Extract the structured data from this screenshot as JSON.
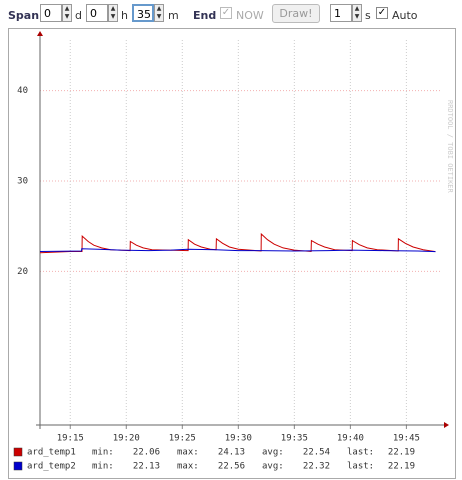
{
  "toolbar": {
    "span_label": "Span",
    "days": 0,
    "days_unit": "d",
    "hours": 0,
    "hours_unit": "h",
    "minutes": 35,
    "minutes_unit": "m",
    "end_label": "End",
    "now": "NOW",
    "draw": "Draw!",
    "interval": 1,
    "interval_unit": "s",
    "auto": "Auto"
  },
  "watermark": "RRDTOOL / TOBI OETIKER",
  "chart_data": {
    "type": "line",
    "xlim": [
      1152.3,
      1188
    ],
    "xticks": [
      {
        "value": 1155,
        "label": "19:15"
      },
      {
        "value": 1160,
        "label": "19:20"
      },
      {
        "value": 1165,
        "label": "19:25"
      },
      {
        "value": 1170,
        "label": "19:30"
      },
      {
        "value": 1175,
        "label": "19:35"
      },
      {
        "value": 1180,
        "label": "19:40"
      },
      {
        "value": 1185,
        "label": "19:45"
      }
    ],
    "ylim": [
      3,
      45.6
    ],
    "yticks": [
      40,
      30,
      20
    ],
    "grid": true,
    "series": [
      {
        "name": "ard_temp1",
        "color": "#cc0000",
        "x": [
          1152.3,
          1155.0,
          1156.05,
          1156.07,
          1156.6,
          1157.1,
          1157.8,
          1158.6,
          1160.34,
          1160.36,
          1160.9,
          1161.5,
          1162.3,
          1165.52,
          1165.54,
          1166.1,
          1166.7,
          1167.5,
          1168.02,
          1168.04,
          1168.6,
          1169.2,
          1170.0,
          1172.03,
          1172.05,
          1172.6,
          1173.2,
          1174.0,
          1175.0,
          1176.5,
          1176.52,
          1177.1,
          1177.7,
          1178.6,
          1180.16,
          1180.18,
          1180.8,
          1181.5,
          1182.4,
          1184.27,
          1184.29,
          1184.9,
          1185.6,
          1186.5,
          1187.6
        ],
        "values": [
          22.06,
          22.2,
          22.2,
          23.9,
          23.3,
          22.9,
          22.6,
          22.4,
          22.3,
          23.3,
          22.9,
          22.6,
          22.4,
          22.3,
          23.5,
          23.0,
          22.7,
          22.45,
          22.4,
          23.6,
          23.1,
          22.7,
          22.45,
          22.25,
          24.13,
          23.5,
          23.0,
          22.6,
          22.35,
          22.2,
          23.4,
          23.0,
          22.7,
          22.4,
          22.3,
          23.4,
          22.95,
          22.6,
          22.4,
          22.25,
          23.6,
          23.1,
          22.7,
          22.4,
          22.19
        ],
        "stats": [
          {
            "label": "min:",
            "value": 22.06
          },
          {
            "label": "max:",
            "value": 24.13
          },
          {
            "label": "avg:",
            "value": 22.54
          },
          {
            "label": "last:",
            "value": 22.19
          }
        ]
      },
      {
        "name": "ard_temp2",
        "color": "#0000cc",
        "x": [
          1152.3,
          1156.0,
          1156.02,
          1157.5,
          1159.5,
          1162.0,
          1164.0,
          1165.5,
          1168.0,
          1170.0,
          1172.0,
          1175.0,
          1178.0,
          1180.0,
          1183.0,
          1186.0,
          1187.6
        ],
        "values": [
          22.2,
          22.25,
          22.5,
          22.45,
          22.35,
          22.3,
          22.35,
          22.45,
          22.4,
          22.3,
          22.3,
          22.25,
          22.3,
          22.35,
          22.3,
          22.25,
          22.19
        ],
        "stats": [
          {
            "label": "min:",
            "value": 22.13
          },
          {
            "label": "max:",
            "value": 22.56
          },
          {
            "label": "avg:",
            "value": 22.32
          },
          {
            "label": "last:",
            "value": 22.19
          }
        ]
      }
    ]
  }
}
